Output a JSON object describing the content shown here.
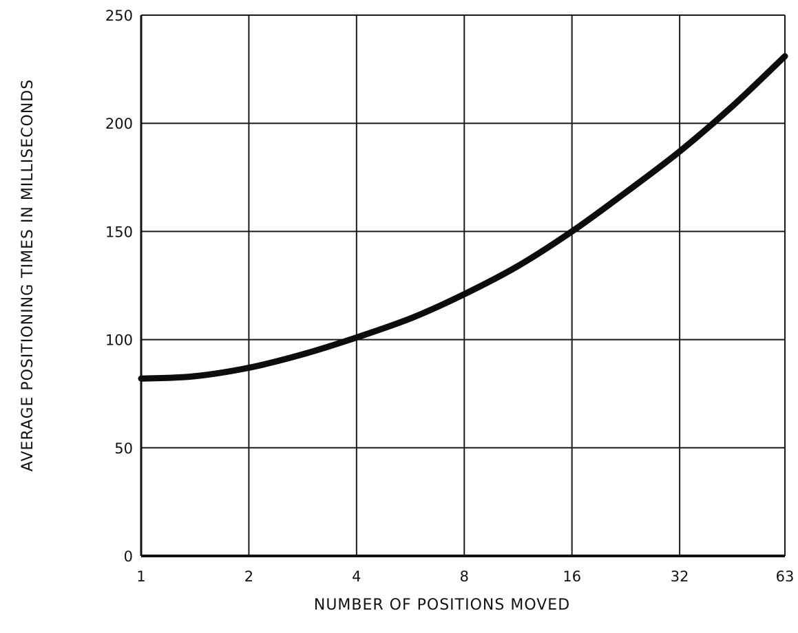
{
  "chart_data": {
    "type": "line",
    "title": "",
    "xlabel": "NUMBER OF POSITIONS MOVED",
    "ylabel": "AVERAGE POSITIONING TIMES IN MILLISECONDS",
    "x_scale": "log2",
    "x_ticks": [
      1,
      2,
      4,
      8,
      16,
      32,
      63
    ],
    "y_ticks": [
      0,
      50,
      100,
      150,
      200,
      250
    ],
    "ylim": [
      0,
      250
    ],
    "grid": true,
    "legend": "none",
    "series": [
      {
        "x": [
          1,
          1.4,
          2,
          2.8,
          4,
          5.7,
          8,
          11.3,
          16,
          22.6,
          32,
          45,
          63
        ],
        "values": [
          82,
          83,
          87,
          93,
          101,
          110,
          121,
          134,
          150,
          168,
          187,
          208,
          231
        ]
      }
    ]
  }
}
